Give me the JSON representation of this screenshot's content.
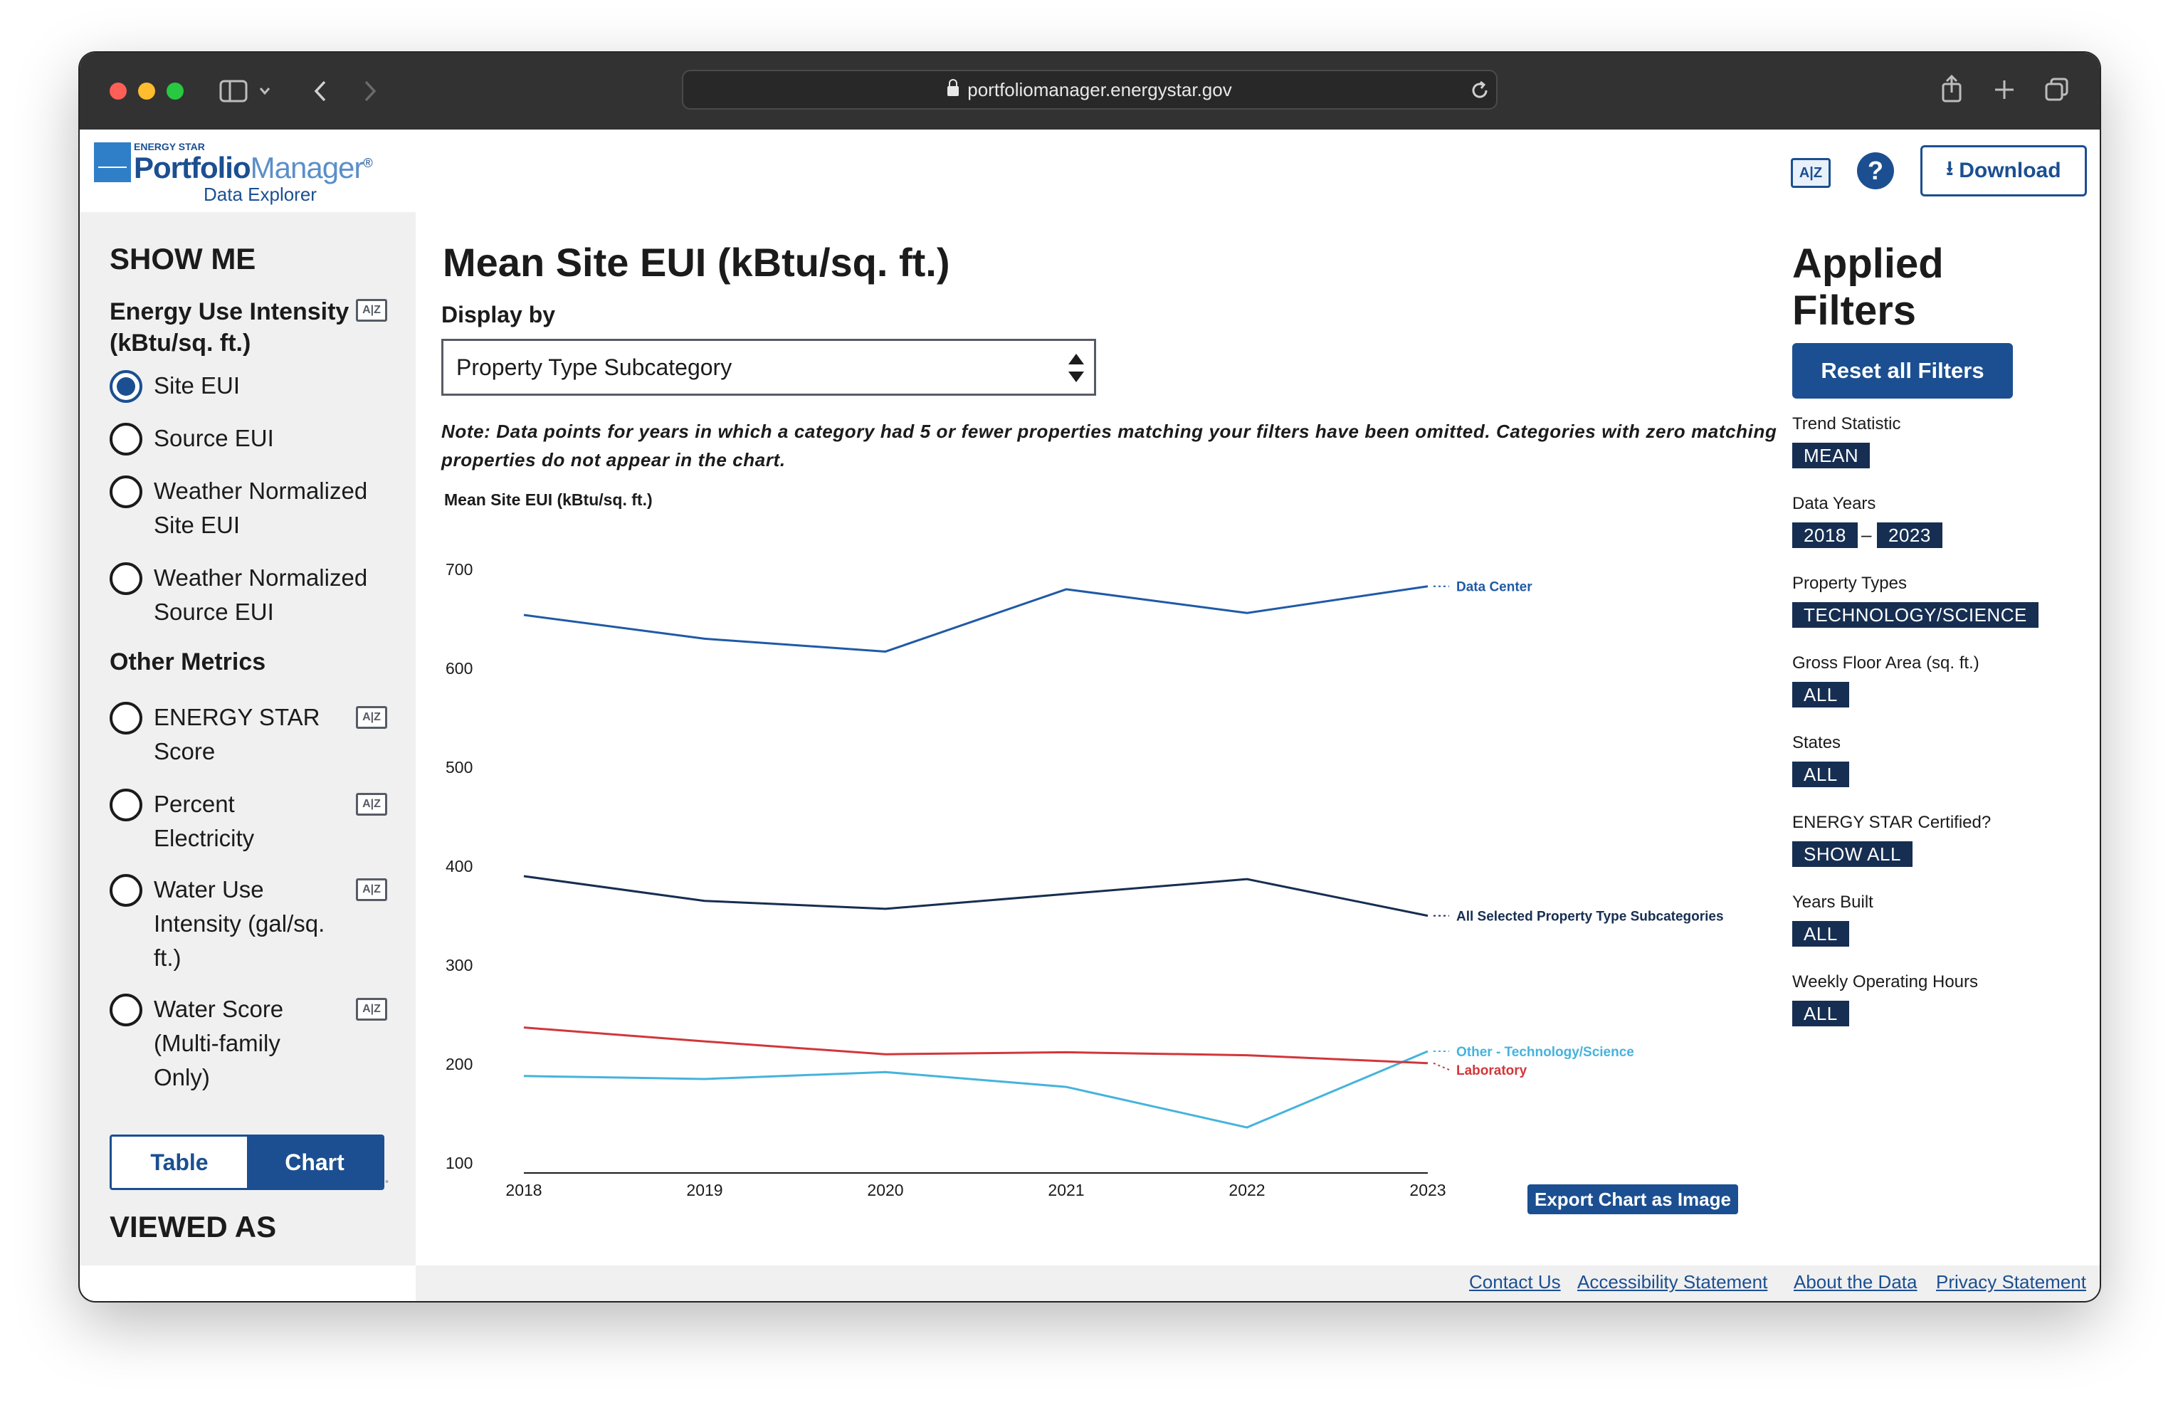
{
  "browser": {
    "url": "portfoliomanager.energystar.gov"
  },
  "header": {
    "logo_energystar": "ENERGY STAR",
    "logo_portfolio": "Portfolio",
    "logo_manager": "Manager",
    "logo_reg": "®",
    "logo_subtitle": "Data Explorer",
    "glossary_label": "A|Z",
    "help_label": "?",
    "download_label": "Download"
  },
  "sidebar": {
    "show_me": "SHOW ME",
    "eui_heading_line1": "Energy Use Intensity",
    "eui_heading_line2": "(kBtu/sq. ft.)",
    "eui_options": [
      {
        "label_lines": [
          "Site EUI"
        ],
        "checked": true
      },
      {
        "label_lines": [
          "Source EUI"
        ],
        "checked": false
      },
      {
        "label_lines": [
          "Weather Normalized",
          "Site EUI"
        ],
        "checked": false
      },
      {
        "label_lines": [
          "Weather Normalized",
          "Source EUI"
        ],
        "checked": false
      }
    ],
    "other_metrics": "Other Metrics",
    "other_options": [
      {
        "label_lines": [
          "ENERGY STAR",
          "Score"
        ],
        "checked": false
      },
      {
        "label_lines": [
          "Percent",
          "Electricity"
        ],
        "checked": false
      },
      {
        "label_lines": [
          "Water Use",
          "Intensity (gal/sq.",
          "ft.)"
        ],
        "checked": false
      },
      {
        "label_lines": [
          "Water Score",
          "(Multi-family",
          "Only)"
        ],
        "checked": false
      }
    ],
    "az_label": "A|Z",
    "viewed_as": "VIEWED AS",
    "view_table": "Table",
    "view_chart": "Chart",
    "active_view": "Chart"
  },
  "main": {
    "title": "Mean Site EUI (kBtu/sq. ft.)",
    "display_by_label": "Display by",
    "display_by_value": "Property Type Subcategory",
    "note": "Note: Data points for years in which a category had 5 or fewer properties matching your filters have been omitted. Categories with zero matching properties do not appear in the chart.",
    "export_label": "Export Chart as Image"
  },
  "chart_data": {
    "type": "line",
    "title": "",
    "ylabel": "Mean Site EUI (kBtu/sq. ft.)",
    "xlabel": "",
    "x": [
      2018,
      2019,
      2020,
      2021,
      2022,
      2023
    ],
    "ylim": [
      100,
      700
    ],
    "yticks": [
      100,
      200,
      300,
      400,
      500,
      600,
      700
    ],
    "grid": false,
    "legend": "end-of-line labels",
    "series": [
      {
        "name": "Data Center",
        "color": "#1f5aa6",
        "values": [
          664,
          640,
          627,
          690,
          666,
          693
        ]
      },
      {
        "name": "All Selected Property Type Subcategories",
        "color": "#162e51",
        "values": [
          400,
          375,
          367,
          382,
          397,
          360
        ]
      },
      {
        "name": "Other - Technology/Science",
        "color": "#45b3dc",
        "values": [
          198,
          195,
          202,
          187,
          146,
          223
        ]
      },
      {
        "name": "Laboratory",
        "color": "#d1373a",
        "values": [
          247,
          233,
          220,
          222,
          219,
          211
        ]
      }
    ]
  },
  "filters": {
    "title_line1": "Applied",
    "title_line2": "Filters",
    "reset_label": "Reset all Filters",
    "trend_label": "Trend Statistic",
    "trend_value": "MEAN",
    "years_label": "Data Years",
    "year_start": "2018",
    "year_dash": "–",
    "year_end": "2023",
    "property_label": "Property Types",
    "property_value": "TECHNOLOGY/SCIENCE",
    "gfa_label": "Gross Floor Area (sq. ft.)",
    "gfa_value": "ALL",
    "states_label": "States",
    "states_value": "ALL",
    "certified_label": "ENERGY STAR Certified?",
    "certified_value": "SHOW ALL",
    "built_label": "Years Built",
    "built_value": "ALL",
    "hours_label": "Weekly Operating Hours",
    "hours_value": "ALL"
  },
  "footer": {
    "links": [
      "Contact Us",
      "Accessibility Statement",
      "About the Data",
      "Privacy Statement"
    ]
  }
}
